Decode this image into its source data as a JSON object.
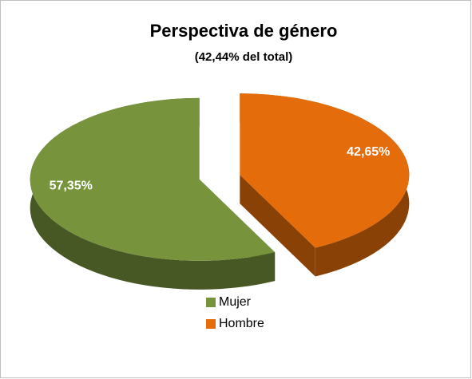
{
  "chart_data": {
    "type": "pie3d",
    "title": "Perspectiva de género",
    "subtitle": "(42,44% del total)",
    "categories": [
      "Hombre",
      "Mujer"
    ],
    "values": [
      42.65,
      57.35
    ],
    "value_labels": [
      "42,65%",
      "57,35%"
    ],
    "colors": [
      "#e46c0a",
      "#77933c"
    ],
    "legend": "bottom"
  }
}
